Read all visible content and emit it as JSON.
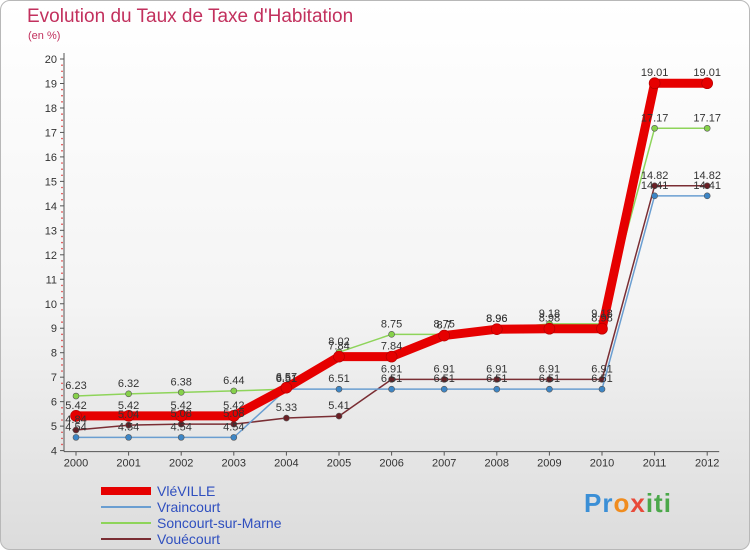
{
  "chart_data": {
    "type": "line",
    "title": "Evolution du Taux de Taxe d'Habitation",
    "unit_label": "(en %)",
    "x": [
      "2000",
      "2001",
      "2002",
      "2003",
      "2004",
      "2005",
      "2006",
      "2007",
      "2008",
      "2009",
      "2010",
      "2011",
      "2012"
    ],
    "ylim": [
      4,
      20
    ],
    "yticks": [
      4,
      5,
      6,
      7,
      8,
      9,
      10,
      11,
      12,
      13,
      14,
      15,
      16,
      17,
      18,
      19,
      20
    ],
    "grid": false,
    "legend_position": "bottom-left",
    "series": [
      {
        "name": "VléVILLE",
        "color": "#e60000",
        "values": [
          5.42,
          5.42,
          5.42,
          5.42,
          6.57,
          7.84,
          7.84,
          8.7,
          8.96,
          8.98,
          8.98,
          19.01,
          19.01
        ],
        "labels": [
          "5.42",
          "5.42",
          "5.42",
          "5.42",
          "6.57",
          "7.84",
          "7.84",
          "8.7",
          "8.96",
          "8.98",
          "8.98",
          "19.01",
          "19.01"
        ]
      },
      {
        "name": "Vraincourt",
        "color": "#6a9ed1",
        "values": [
          4.54,
          4.54,
          4.54,
          4.54,
          6.51,
          6.51,
          6.51,
          6.51,
          6.51,
          6.51,
          6.51,
          14.41,
          14.41
        ],
        "labels": [
          "4.54",
          "4.54",
          "4.54",
          "4.54",
          "6.51",
          "6.51",
          "6.51",
          "6.51",
          "6.51",
          "6.51",
          "6.51",
          "14.41",
          "14.41"
        ]
      },
      {
        "name": "Soncourt-sur-Marne",
        "color": "#8ed45a",
        "values": [
          6.23,
          6.32,
          6.38,
          6.44,
          6.51,
          8.02,
          8.75,
          8.75,
          8.96,
          9.18,
          9.18,
          17.17,
          17.17
        ],
        "labels": [
          "6.23",
          "6.32",
          "6.38",
          "6.44",
          "6.51",
          "8.02",
          "8.75",
          "8.75",
          "8.96",
          "9.18",
          "9.18",
          "17.17",
          "17.17"
        ]
      },
      {
        "name": "Vouécourt",
        "color": "#7a2e34",
        "values": [
          4.84,
          5.04,
          5.08,
          5.08,
          5.33,
          5.41,
          6.91,
          6.91,
          6.91,
          6.91,
          6.91,
          14.82,
          14.82
        ],
        "labels": [
          "4.84",
          "5.04",
          "5.08",
          "5.08",
          "5.33",
          "5.41",
          "6.91",
          "6.91",
          "6.91",
          "6.91",
          "6.91",
          "14.82",
          "14.82"
        ]
      }
    ]
  },
  "brand": {
    "p1": "Pr",
    "p2": "o",
    "p3": "x",
    "p4": "iti"
  }
}
